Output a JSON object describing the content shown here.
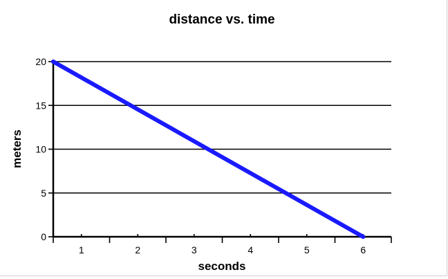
{
  "chart_data": {
    "type": "line",
    "title": "distance vs. time",
    "xlabel": "seconds",
    "ylabel": "meters",
    "xlim": [
      0.5,
      6.5
    ],
    "ylim": [
      0,
      20
    ],
    "x_ticks": [
      1,
      2,
      3,
      4,
      5,
      6
    ],
    "y_ticks": [
      0,
      5,
      10,
      15,
      20
    ],
    "grid": "horizontal",
    "series": [
      {
        "x": [
          0.5,
          6
        ],
        "y": [
          20,
          0
        ],
        "color": "#1a1aff"
      }
    ]
  }
}
